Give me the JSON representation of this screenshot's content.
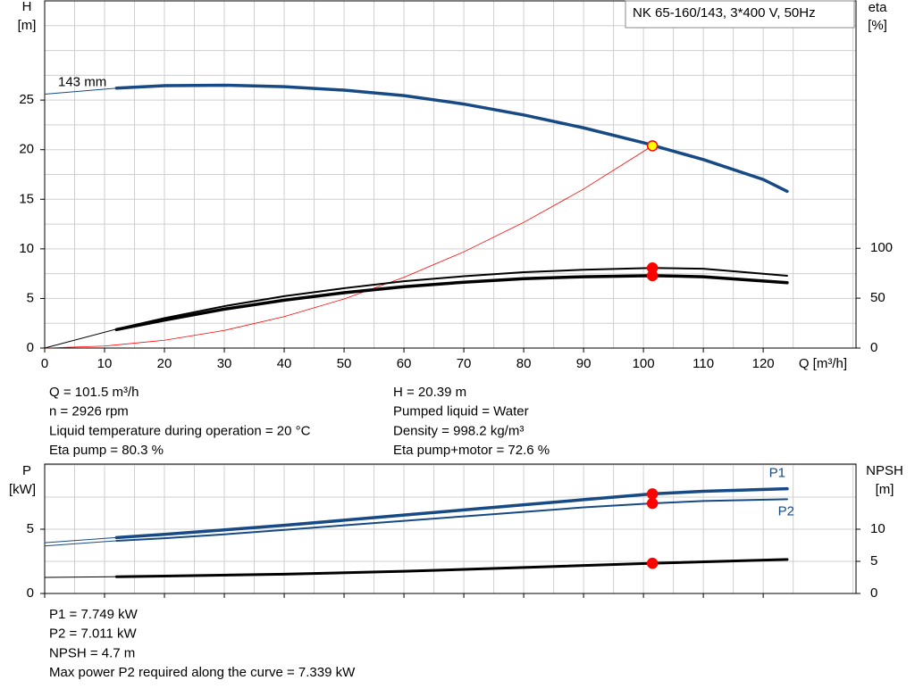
{
  "chart_data": [
    {
      "type": "line",
      "title": "NK 65-160/143, 3*400 V, 50Hz",
      "ylabel": "H",
      "yunit": "[m]",
      "y2label": "eta",
      "y2unit": "[%]",
      "xlabel": "Q [m³/h]",
      "xlim": [
        0,
        135.5
      ],
      "xticks": [
        0,
        10,
        20,
        30,
        40,
        50,
        60,
        70,
        80,
        90,
        100,
        110,
        120
      ],
      "xgrid": [
        5,
        15,
        25,
        35,
        45,
        55,
        65,
        75,
        85,
        95,
        105,
        115,
        125,
        135
      ],
      "ylim": [
        0,
        35
      ],
      "yticks": [
        0,
        5,
        10,
        15,
        20,
        25
      ],
      "ygrid": [
        2.5,
        7.5,
        12.5,
        17.5,
        22.5,
        27.5,
        30,
        32.5
      ],
      "y2lim": [
        0,
        348
      ],
      "y2ticks": [
        0,
        50,
        100
      ],
      "grid": true,
      "xtick_labels": true,
      "series": [
        {
          "name": "143 mm",
          "label_at": "start-above",
          "color": "#174a84",
          "width": 1,
          "axis": "y",
          "x": [
            0,
            12
          ],
          "values": [
            25.6,
            26.2
          ]
        },
        {
          "color": "#174a84",
          "width": 3.5,
          "axis": "y",
          "x": [
            12,
            20,
            30,
            40,
            50,
            60,
            70,
            80,
            90,
            100,
            110,
            120,
            124
          ],
          "values": [
            26.2,
            26.45,
            26.5,
            26.35,
            26.0,
            25.45,
            24.6,
            23.5,
            22.2,
            20.7,
            19.0,
            17.0,
            15.8
          ]
        },
        {
          "color": "#ff0000",
          "width": 0.8,
          "axis": "y",
          "x": [
            0,
            10,
            20,
            30,
            40,
            50,
            60,
            70,
            80,
            90,
            101.5
          ],
          "values": [
            0,
            0.2,
            0.79,
            1.78,
            3.17,
            4.95,
            7.13,
            9.7,
            12.67,
            16.03,
            20.39
          ]
        },
        {
          "color": "#000000",
          "width": 1,
          "axis": "y2",
          "x": [
            0,
            12
          ],
          "values": [
            0,
            19
          ]
        },
        {
          "color": "#000000",
          "width": 2,
          "axis": "y2",
          "x": [
            12,
            20,
            30,
            40,
            50,
            60,
            70,
            80,
            90,
            101.5,
            110,
            124
          ],
          "values": [
            19,
            30,
            42,
            52,
            60,
            67,
            72,
            76,
            78.5,
            80.3,
            79.5,
            72.5
          ]
        },
        {
          "color": "#000000",
          "width": 3.5,
          "axis": "y2",
          "x": [
            12,
            20,
            30,
            40,
            50,
            60,
            70,
            80,
            90,
            101.5,
            110,
            124
          ],
          "values": [
            18.5,
            28,
            39,
            48,
            55.5,
            61.5,
            66,
            69.5,
            71.5,
            72.6,
            71.5,
            65.5
          ]
        },
        {
          "style": "point",
          "color": "#ffff00",
          "edge": "#ff0000",
          "axis": "y",
          "x": [
            101.5
          ],
          "values": [
            20.39
          ]
        },
        {
          "style": "point",
          "color": "#ff0000",
          "edge": "#ff0000",
          "axis": "y2",
          "x": [
            101.5,
            101.5
          ],
          "values": [
            80.3,
            72.6
          ]
        }
      ],
      "notes": {
        "left": [
          "Q = 101.5 m³/h",
          "n = 2926 rpm",
          "Liquid temperature during operation = 20 °C",
          "Eta pump = 80.3 %"
        ],
        "right": [
          "H = 20.39 m",
          "Pumped liquid = Water",
          "Density = 998.2 kg/m³",
          "Eta pump+motor = 72.6 %"
        ]
      }
    },
    {
      "type": "line",
      "ylabel": "P",
      "yunit": "[kW]",
      "y2label": "NPSH",
      "y2unit": "[m]",
      "xlim": [
        0,
        135.5
      ],
      "xticks": [
        0,
        10,
        20,
        30,
        40,
        50,
        60,
        70,
        80,
        90,
        100,
        110,
        120
      ],
      "xgrid": [
        5,
        15,
        25,
        35,
        45,
        55,
        65,
        75,
        85,
        95,
        105,
        115,
        125,
        135
      ],
      "ylim": [
        0,
        10.07
      ],
      "yticks": [
        0,
        5
      ],
      "ygrid": [
        2.5,
        7.5,
        10
      ],
      "y2lim": [
        0,
        20.14
      ],
      "y2ticks": [
        0,
        5,
        10
      ],
      "grid": true,
      "xtick_labels": false,
      "series": [
        {
          "color": "#174a84",
          "width": 1,
          "axis": "y",
          "x": [
            0,
            12
          ],
          "values": [
            3.95,
            4.35
          ]
        },
        {
          "name": "P1",
          "label_at": "end-above",
          "color": "#174a84",
          "width": 3.5,
          "axis": "y",
          "x": [
            12,
            20,
            30,
            40,
            50,
            60,
            70,
            80,
            90,
            101.5,
            110,
            124
          ],
          "values": [
            4.35,
            4.6,
            4.95,
            5.3,
            5.7,
            6.1,
            6.5,
            6.9,
            7.3,
            7.749,
            7.95,
            8.15
          ]
        },
        {
          "color": "#174a84",
          "width": 1,
          "axis": "y",
          "x": [
            0,
            12
          ],
          "values": [
            3.7,
            4.1
          ]
        },
        {
          "name": "P2",
          "label_at": "end-below",
          "color": "#174a84",
          "width": 2,
          "axis": "y",
          "x": [
            12,
            20,
            30,
            40,
            50,
            60,
            70,
            80,
            90,
            101.5,
            110,
            124
          ],
          "values": [
            4.1,
            4.3,
            4.6,
            4.95,
            5.3,
            5.65,
            6.0,
            6.35,
            6.7,
            7.011,
            7.2,
            7.339
          ]
        },
        {
          "color": "#000000",
          "width": 1,
          "axis": "y2",
          "x": [
            0,
            12
          ],
          "values": [
            2.5,
            2.6
          ]
        },
        {
          "color": "#000000",
          "width": 3,
          "axis": "y2",
          "x": [
            12,
            20,
            40,
            60,
            80,
            101.5,
            124
          ],
          "values": [
            2.6,
            2.7,
            3.0,
            3.45,
            4.05,
            4.7,
            5.3
          ]
        },
        {
          "style": "point",
          "color": "#ff0000",
          "edge": "#ff0000",
          "axis": "y",
          "x": [
            101.5,
            101.5
          ],
          "values": [
            7.749,
            7.011
          ]
        },
        {
          "style": "point",
          "color": "#ff0000",
          "edge": "#ff0000",
          "axis": "y2",
          "x": [
            101.5
          ],
          "values": [
            4.7
          ]
        }
      ],
      "notes": {
        "left": [
          "P1 = 7.749 kW",
          "P2 = 7.011 kW",
          "NPSH = 4.7 m",
          "Max power P2 required along the curve = 7.339 kW"
        ]
      }
    }
  ]
}
